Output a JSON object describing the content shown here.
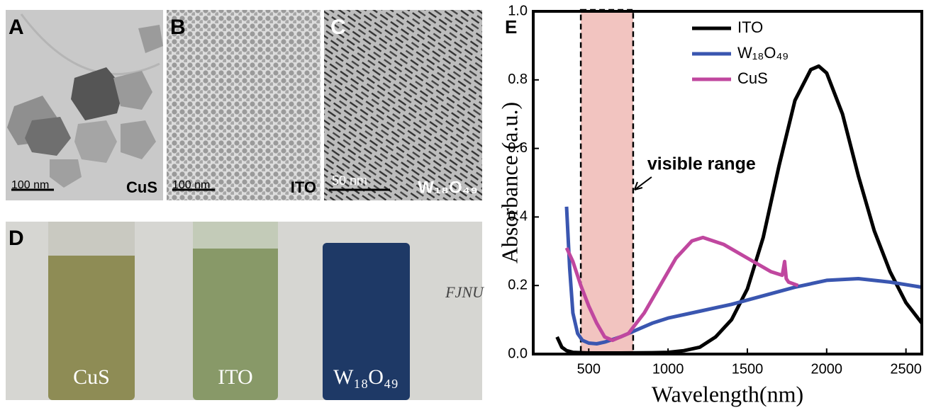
{
  "panels": [
    {
      "label": "A",
      "scale_bar": "100 nm",
      "caption": "CuS"
    },
    {
      "label": "B",
      "scale_bar": "100 nm",
      "caption": "ITO"
    },
    {
      "label": "C",
      "scale_bar": "50 nm",
      "caption": "W₁₈O₄₉"
    },
    {
      "label": "D",
      "background_text": "FJNU",
      "vials": [
        "CuS",
        "ITO",
        "W₁₈O₄₉"
      ]
    }
  ],
  "chart_data": {
    "type": "line",
    "panel_label": "E",
    "x_label": "Wavelength(nm)",
    "y_label": "Absorbance (a.u.)",
    "annotation": "visible range",
    "shaded_range": [
      450,
      780
    ],
    "xlim": [
      150,
      2600
    ],
    "xticks": [
      500,
      1000,
      1500,
      2000,
      2500
    ],
    "ylim": [
      0,
      1.0
    ],
    "yticks": [
      {
        "value": 0,
        "label": "0.0"
      },
      0.2,
      0.4,
      0.6,
      0.8,
      {
        "value": 1,
        "label": "1.0"
      }
    ],
    "legend": "upper center",
    "series": [
      {
        "name": "ITO",
        "color": "#000000",
        "x": [
          300,
          330,
          360,
          400,
          500,
          700,
          900,
          1000,
          1100,
          1200,
          1300,
          1400,
          1500,
          1600,
          1700,
          1800,
          1900,
          1950,
          2000,
          2100,
          2200,
          2300,
          2400,
          2500,
          2600
        ],
        "values": [
          0.05,
          0.02,
          0.01,
          0.005,
          0.003,
          0.003,
          0.004,
          0.005,
          0.01,
          0.02,
          0.05,
          0.1,
          0.19,
          0.34,
          0.55,
          0.74,
          0.83,
          0.84,
          0.82,
          0.7,
          0.52,
          0.36,
          0.24,
          0.15,
          0.09
        ]
      },
      {
        "name": "W₁₈O₄₉",
        "color": "#3a56b0",
        "x": [
          360,
          380,
          400,
          430,
          460,
          500,
          550,
          600,
          700,
          800,
          900,
          1000,
          1200,
          1400,
          1600,
          1800,
          2000,
          2200,
          2400,
          2600
        ],
        "values": [
          0.43,
          0.25,
          0.12,
          0.06,
          0.04,
          0.032,
          0.03,
          0.035,
          0.05,
          0.07,
          0.09,
          0.105,
          0.125,
          0.145,
          0.17,
          0.195,
          0.215,
          0.22,
          0.21,
          0.195
        ]
      },
      {
        "name": "CuS",
        "color": "#c0479f",
        "x": [
          360,
          400,
          450,
          500,
          550,
          600,
          650,
          750,
          850,
          950,
          1050,
          1150,
          1220,
          1350,
          1500,
          1650,
          1720,
          1735,
          1745,
          1760,
          1820
        ],
        "values": [
          0.31,
          0.27,
          0.2,
          0.14,
          0.09,
          0.05,
          0.04,
          0.06,
          0.12,
          0.2,
          0.28,
          0.33,
          0.34,
          0.32,
          0.28,
          0.24,
          0.23,
          0.27,
          0.22,
          0.21,
          0.2
        ]
      }
    ]
  }
}
